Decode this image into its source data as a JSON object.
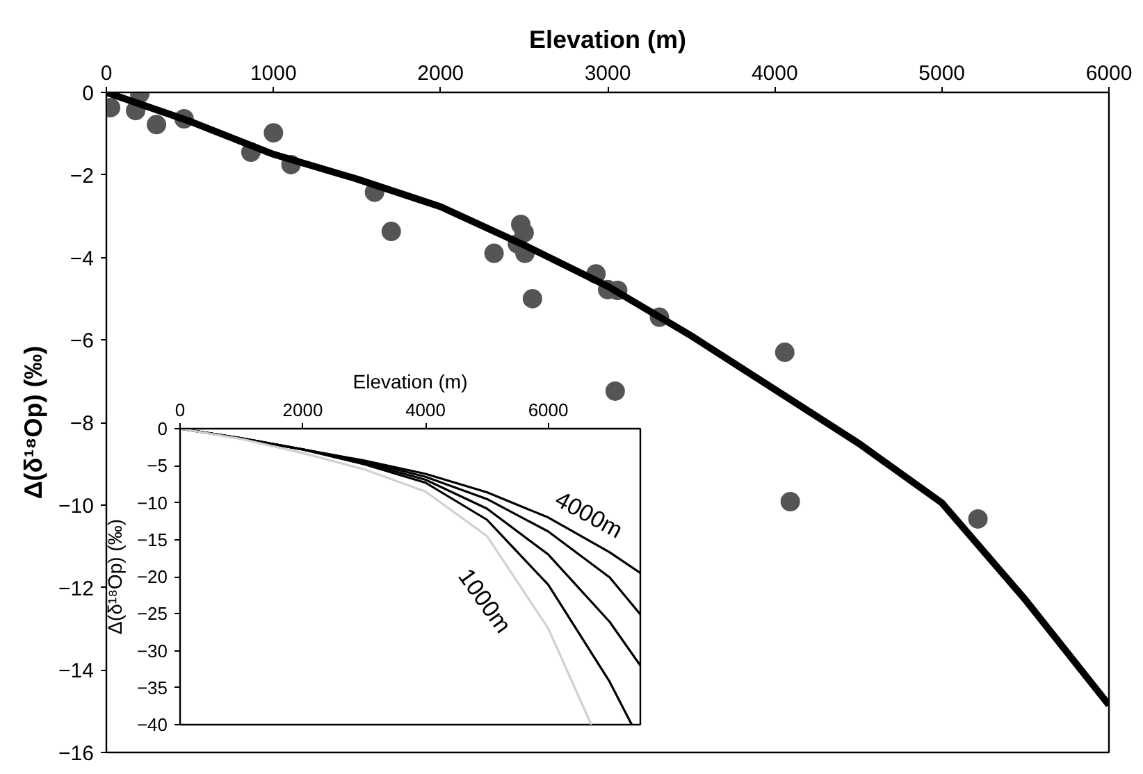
{
  "chart_data": [
    {
      "type": "scatter",
      "xlabel": "Elevation (m)",
      "ylabel": "Δ(δ¹⁸Op) (‰)",
      "xlim": [
        0,
        6000
      ],
      "xticks": [
        0,
        1000,
        2000,
        3000,
        4000,
        5000,
        6000
      ],
      "ylim": [
        -16,
        0
      ],
      "yticks": [
        0,
        -2,
        -4,
        -6,
        -8,
        -10,
        -12,
        -14,
        -16
      ],
      "grid": false,
      "series": [
        {
          "type": "scatter",
          "marker": "circle",
          "color": "#555555",
          "x": [
            25,
            200,
            175,
            300,
            465,
            865,
            1000,
            1105,
            1605,
            1705,
            2320,
            2480,
            2500,
            2460,
            2505,
            2550,
            2930,
            3000,
            3060,
            3310,
            4060,
            3045,
            4093,
            5216
          ],
          "values": [
            -0.37,
            -0.03,
            -0.44,
            -0.78,
            -0.64,
            -1.45,
            -0.98,
            -1.75,
            -2.42,
            -3.37,
            -3.9,
            -3.2,
            -3.4,
            -3.67,
            -3.9,
            -5.0,
            -4.4,
            -4.78,
            -4.8,
            -5.45,
            -6.3,
            -7.24,
            -9.92,
            -10.34
          ]
        },
        {
          "type": "line",
          "color": "#000000",
          "x": [
            0,
            500,
            1000,
            1500,
            2000,
            2500,
            3000,
            3500,
            4000,
            4500,
            5000,
            5500,
            6000
          ],
          "values": [
            0,
            -0.7,
            -1.5,
            -2.1,
            -2.77,
            -3.7,
            -4.7,
            -5.9,
            -7.2,
            -8.5,
            -9.95,
            -12.3,
            -14.85
          ]
        }
      ]
    },
    {
      "type": "line",
      "xlabel": "Elevation (m)",
      "ylabel": "Δ(δ¹⁸Op) (‰)",
      "xlim": [
        0,
        7500
      ],
      "xticks": [
        0,
        2000,
        4000,
        6000
      ],
      "ylim": [
        -40,
        0
      ],
      "yticks": [
        0,
        -5,
        -10,
        -15,
        -20,
        -25,
        -30,
        -35,
        -40
      ],
      "grid": false,
      "annotations": [
        "4000m",
        "1000m"
      ],
      "series": [
        {
          "color": "#000000",
          "x": [
            0,
            1000,
            2000,
            3000,
            4000,
            5000,
            6000,
            7000,
            7500
          ],
          "values": [
            0,
            -1.3,
            -2.8,
            -4.3,
            -6.1,
            -8.6,
            -12.0,
            -16.7,
            -19.5
          ]
        },
        {
          "color": "#000000",
          "x": [
            0,
            1000,
            2000,
            3000,
            4000,
            5000,
            6000,
            7000,
            7500
          ],
          "values": [
            0,
            -1.3,
            -2.8,
            -4.4,
            -6.5,
            -9.5,
            -13.9,
            -20.1,
            -25.1
          ]
        },
        {
          "color": "#000000",
          "x": [
            0,
            1000,
            2000,
            3000,
            4000,
            5000,
            6000,
            7000,
            7500
          ],
          "values": [
            0,
            -1.3,
            -2.8,
            -4.6,
            -6.9,
            -10.8,
            -17.0,
            -26.1,
            -32.0
          ]
        },
        {
          "color": "#000000",
          "x": [
            0,
            1000,
            2000,
            3000,
            4000,
            5000,
            6000,
            7000,
            7360
          ],
          "values": [
            0,
            -1.3,
            -2.8,
            -4.8,
            -7.3,
            -12.3,
            -21.1,
            -34.2,
            -40
          ]
        },
        {
          "color": "#d0d0d0",
          "x": [
            0,
            1000,
            2000,
            3000,
            4000,
            5000,
            6000,
            6700
          ],
          "values": [
            0,
            -1.4,
            -3.3,
            -5.5,
            -8.5,
            -14.5,
            -27,
            -40
          ]
        }
      ]
    }
  ]
}
